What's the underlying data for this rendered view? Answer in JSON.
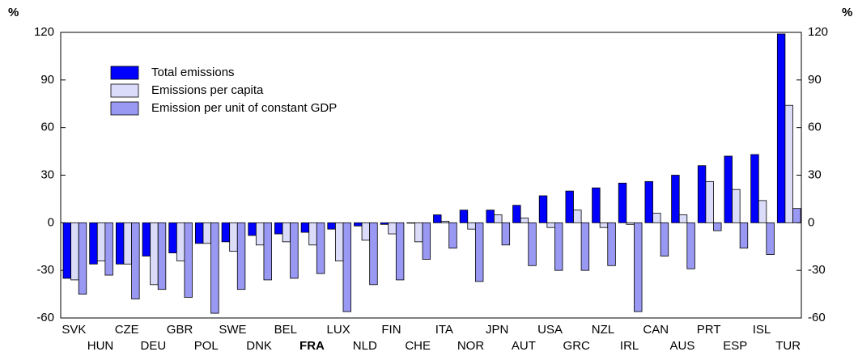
{
  "chart_data": {
    "type": "bar",
    "y_unit": "%",
    "y2_unit": "%",
    "categories": [
      "SVK",
      "HUN",
      "CZE",
      "DEU",
      "GBR",
      "POL",
      "SWE",
      "DNK",
      "BEL",
      "FRA",
      "LUX",
      "NLD",
      "FIN",
      "CHE",
      "ITA",
      "NOR",
      "JPN",
      "AUT",
      "USA",
      "GRC",
      "NZL",
      "IRL",
      "CAN",
      "AUS",
      "PRT",
      "ESP",
      "ISL",
      "TUR"
    ],
    "highlight": "FRA",
    "series": [
      {
        "name": "Total emissions",
        "color": "#0000ff",
        "values": [
          -35,
          -26,
          -26,
          -21,
          -19,
          -13,
          -12,
          -8,
          -7,
          -6,
          -4,
          -2,
          -1,
          0,
          5,
          8,
          8,
          11,
          17,
          20,
          22,
          25,
          26,
          30,
          36,
          42,
          43,
          119
        ]
      },
      {
        "name": "Emissions per capita",
        "color": "#dadcfa",
        "values": [
          -36,
          -24,
          -26,
          -39,
          -24,
          -13,
          -18,
          -14,
          -12,
          -14,
          -24,
          -11,
          -7,
          -12,
          1,
          -4,
          5,
          3,
          -3,
          8,
          -3,
          -1,
          6,
          5,
          26,
          21,
          14,
          74
        ]
      },
      {
        "name": "Emission per unit of constant GDP",
        "color": "#9999f3",
        "values": [
          -45,
          -33,
          -48,
          -42,
          -47,
          -57,
          -42,
          -36,
          -35,
          -32,
          -56,
          -39,
          -36,
          -23,
          -16,
          -37,
          -14,
          -27,
          -30,
          -30,
          -27,
          -56,
          -21,
          -29,
          -5,
          -16,
          -20,
          9
        ]
      }
    ],
    "ylim": [
      -60,
      120
    ],
    "yticks": [
      -60,
      -30,
      0,
      30,
      60,
      90,
      120
    ],
    "y2lim": [
      -60,
      120
    ],
    "y2ticks": [
      -60,
      -30,
      0,
      30,
      60,
      90,
      120
    ],
    "grid": false,
    "legend": "top-left"
  }
}
